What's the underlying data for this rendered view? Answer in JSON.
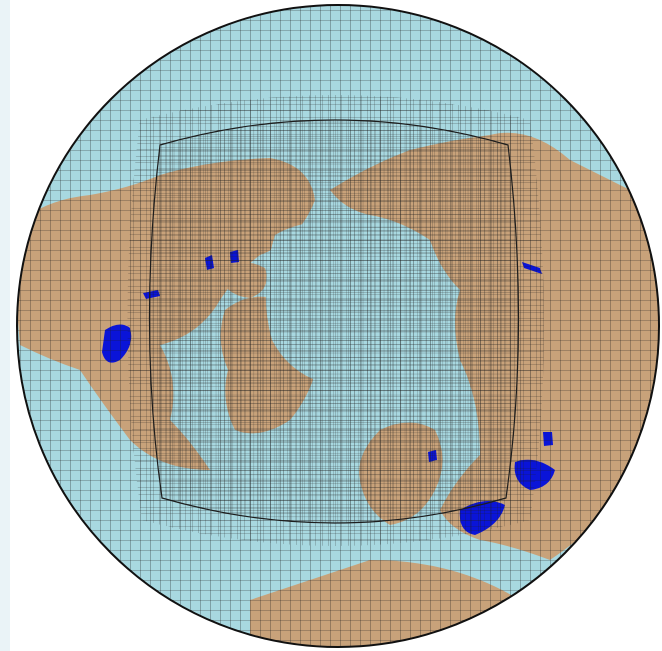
{
  "figure": {
    "kind": "polar-projection-mesh",
    "colors": {
      "background": "#ffffff",
      "frame_tint": "#eaf3f7",
      "ocean": "#a8d8e0",
      "land": "#c8a27a",
      "lakes": "#0a14d8",
      "grid_lines": "#1d1d1d",
      "outline": "#111111"
    },
    "mesh": {
      "outer_grid_divisions": 64,
      "refined_grid_divisions": 150,
      "transition_band": true
    }
  }
}
